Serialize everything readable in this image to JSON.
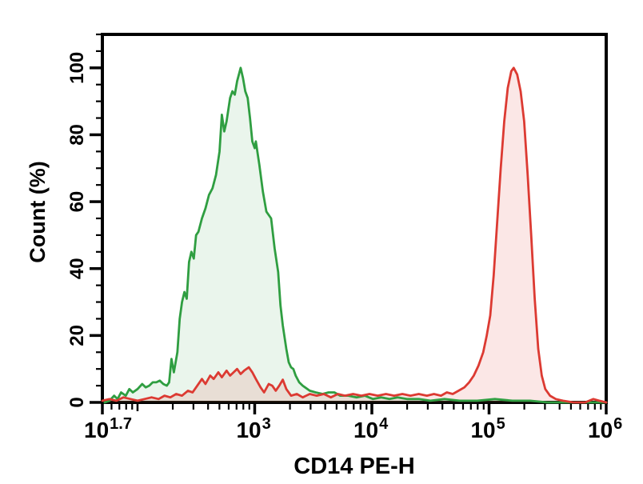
{
  "page": {
    "background": "#ffffff",
    "frame_color": "#000000"
  },
  "chart_data": {
    "type": "area",
    "subtype": "flow-cytometry-histogram-overlay",
    "title": "",
    "xlabel": "CD14 PE-H",
    "ylabel": "Count (%)",
    "x_scale": "log10",
    "x_log_range": [
      1.7,
      6.0
    ],
    "ylim": [
      0,
      110
    ],
    "grid": false,
    "legend": null,
    "y_major_ticks": [
      0,
      20,
      40,
      60,
      80,
      100
    ],
    "y_minor_tick_step": 5,
    "x_major_ticks": [
      {
        "base": "10",
        "exponent": "1.7",
        "log": 1.7
      },
      {
        "base": "10",
        "exponent": "3",
        "log": 3
      },
      {
        "base": "10",
        "exponent": "4",
        "log": 4
      },
      {
        "base": "10",
        "exponent": "5",
        "log": 5
      },
      {
        "base": "10",
        "exponent": "6",
        "log": 6
      }
    ],
    "x_medium_ticks_log": [
      2
    ],
    "series": [
      {
        "name": "green-histogram",
        "line_color": "#2f9e41",
        "fill_color": "rgba(47,158,65,0.10)",
        "peak": {
          "log_x": 2.88,
          "y_pct": 100
        },
        "points_log_pct": [
          [
            1.72,
            0
          ],
          [
            1.76,
            0.5
          ],
          [
            1.8,
            2
          ],
          [
            1.83,
            1
          ],
          [
            1.86,
            3
          ],
          [
            1.9,
            2
          ],
          [
            1.93,
            4
          ],
          [
            1.96,
            3
          ],
          [
            2.0,
            4
          ],
          [
            2.04,
            5.5
          ],
          [
            2.07,
            4.5
          ],
          [
            2.1,
            5
          ],
          [
            2.13,
            6
          ],
          [
            2.16,
            6
          ],
          [
            2.19,
            6.5
          ],
          [
            2.22,
            5.5
          ],
          [
            2.25,
            5
          ],
          [
            2.27,
            6
          ],
          [
            2.29,
            13
          ],
          [
            2.31,
            9
          ],
          [
            2.34,
            15
          ],
          [
            2.36,
            25
          ],
          [
            2.38,
            30
          ],
          [
            2.4,
            33
          ],
          [
            2.42,
            31
          ],
          [
            2.44,
            42
          ],
          [
            2.46,
            45
          ],
          [
            2.48,
            43
          ],
          [
            2.5,
            50
          ],
          [
            2.52,
            51
          ],
          [
            2.55,
            55
          ],
          [
            2.58,
            58
          ],
          [
            2.61,
            62
          ],
          [
            2.64,
            64
          ],
          [
            2.67,
            68
          ],
          [
            2.7,
            75
          ],
          [
            2.72,
            86
          ],
          [
            2.74,
            81
          ],
          [
            2.76,
            84
          ],
          [
            2.79,
            91
          ],
          [
            2.81,
            93
          ],
          [
            2.83,
            92
          ],
          [
            2.85,
            96
          ],
          [
            2.88,
            100
          ],
          [
            2.9,
            97
          ],
          [
            2.92,
            93
          ],
          [
            2.94,
            91
          ],
          [
            2.96,
            85
          ],
          [
            2.98,
            78
          ],
          [
            3.0,
            76
          ],
          [
            3.01,
            78
          ],
          [
            3.04,
            71
          ],
          [
            3.07,
            63
          ],
          [
            3.1,
            57
          ],
          [
            3.14,
            55
          ],
          [
            3.17,
            46
          ],
          [
            3.2,
            39
          ],
          [
            3.22,
            29
          ],
          [
            3.24,
            23
          ],
          [
            3.27,
            16
          ],
          [
            3.29,
            12
          ],
          [
            3.31,
            10.5
          ],
          [
            3.33,
            10
          ],
          [
            3.35,
            8
          ],
          [
            3.38,
            6
          ],
          [
            3.41,
            5
          ],
          [
            3.47,
            3.5
          ],
          [
            3.52,
            3
          ],
          [
            3.58,
            2.5
          ],
          [
            3.63,
            3
          ],
          [
            3.68,
            3
          ],
          [
            3.73,
            2
          ],
          [
            3.8,
            2
          ],
          [
            3.87,
            1.5
          ],
          [
            3.94,
            2
          ],
          [
            4.01,
            1
          ],
          [
            4.08,
            1.5
          ],
          [
            4.15,
            1
          ],
          [
            4.22,
            1.5
          ],
          [
            4.3,
            1
          ],
          [
            4.4,
            1
          ],
          [
            4.5,
            0.5
          ],
          [
            4.62,
            1
          ],
          [
            4.75,
            0.5
          ],
          [
            4.9,
            0.5
          ],
          [
            5.05,
            1
          ],
          [
            5.2,
            0.5
          ],
          [
            5.35,
            0.5
          ],
          [
            5.5,
            0
          ],
          [
            5.75,
            0
          ],
          [
            6.0,
            0
          ]
        ]
      },
      {
        "name": "red-histogram",
        "line_color": "#dc3a32",
        "fill_color": "rgba(220,58,50,0.12)",
        "peak": {
          "log_x": 5.21,
          "y_pct": 100
        },
        "points_log_pct": [
          [
            1.7,
            0.5
          ],
          [
            1.76,
            1
          ],
          [
            1.82,
            0.5
          ],
          [
            1.88,
            1.5
          ],
          [
            1.94,
            1
          ],
          [
            2.0,
            0.5
          ],
          [
            2.06,
            1
          ],
          [
            2.12,
            1.5
          ],
          [
            2.18,
            1
          ],
          [
            2.23,
            2
          ],
          [
            2.28,
            1.5
          ],
          [
            2.33,
            2.5
          ],
          [
            2.38,
            2
          ],
          [
            2.43,
            3.5
          ],
          [
            2.47,
            3
          ],
          [
            2.51,
            5
          ],
          [
            2.55,
            7
          ],
          [
            2.58,
            5.5
          ],
          [
            2.62,
            8
          ],
          [
            2.65,
            7
          ],
          [
            2.69,
            9
          ],
          [
            2.72,
            7.5
          ],
          [
            2.76,
            9.5
          ],
          [
            2.79,
            8
          ],
          [
            2.82,
            9
          ],
          [
            2.85,
            10
          ],
          [
            2.88,
            8.5
          ],
          [
            2.91,
            9.5
          ],
          [
            2.95,
            10.5
          ],
          [
            2.98,
            9
          ],
          [
            3.01,
            7
          ],
          [
            3.05,
            4.5
          ],
          [
            3.08,
            3
          ],
          [
            3.12,
            5.5
          ],
          [
            3.15,
            5
          ],
          [
            3.18,
            3.5
          ],
          [
            3.21,
            5
          ],
          [
            3.24,
            6.8
          ],
          [
            3.27,
            4
          ],
          [
            3.31,
            2
          ],
          [
            3.36,
            2.5
          ],
          [
            3.41,
            1.5
          ],
          [
            3.47,
            2.5
          ],
          [
            3.53,
            2
          ],
          [
            3.59,
            2.5
          ],
          [
            3.65,
            1.5
          ],
          [
            3.71,
            2.5
          ],
          [
            3.77,
            2
          ],
          [
            3.84,
            2.5
          ],
          [
            3.91,
            2
          ],
          [
            3.98,
            2.5
          ],
          [
            4.05,
            2
          ],
          [
            4.12,
            2.5
          ],
          [
            4.19,
            2
          ],
          [
            4.26,
            2.5
          ],
          [
            4.33,
            2
          ],
          [
            4.4,
            2.5
          ],
          [
            4.47,
            2
          ],
          [
            4.53,
            2.5
          ],
          [
            4.59,
            2
          ],
          [
            4.64,
            3
          ],
          [
            4.69,
            2.5
          ],
          [
            4.74,
            3.5
          ],
          [
            4.79,
            4.5
          ],
          [
            4.83,
            6
          ],
          [
            4.87,
            8
          ],
          [
            4.91,
            11
          ],
          [
            4.95,
            15
          ],
          [
            4.98,
            20
          ],
          [
            5.01,
            26
          ],
          [
            5.04,
            38
          ],
          [
            5.07,
            54
          ],
          [
            5.1,
            70
          ],
          [
            5.13,
            84
          ],
          [
            5.16,
            94
          ],
          [
            5.19,
            99
          ],
          [
            5.21,
            100
          ],
          [
            5.24,
            98
          ],
          [
            5.27,
            93
          ],
          [
            5.3,
            84
          ],
          [
            5.33,
            68
          ],
          [
            5.36,
            50
          ],
          [
            5.39,
            31
          ],
          [
            5.42,
            16
          ],
          [
            5.45,
            8
          ],
          [
            5.48,
            4
          ],
          [
            5.52,
            2
          ],
          [
            5.57,
            1
          ],
          [
            5.63,
            0.5
          ],
          [
            5.72,
            0
          ],
          [
            5.82,
            0
          ],
          [
            5.89,
            1
          ],
          [
            5.94,
            0.5
          ],
          [
            6.0,
            0
          ]
        ]
      }
    ]
  }
}
